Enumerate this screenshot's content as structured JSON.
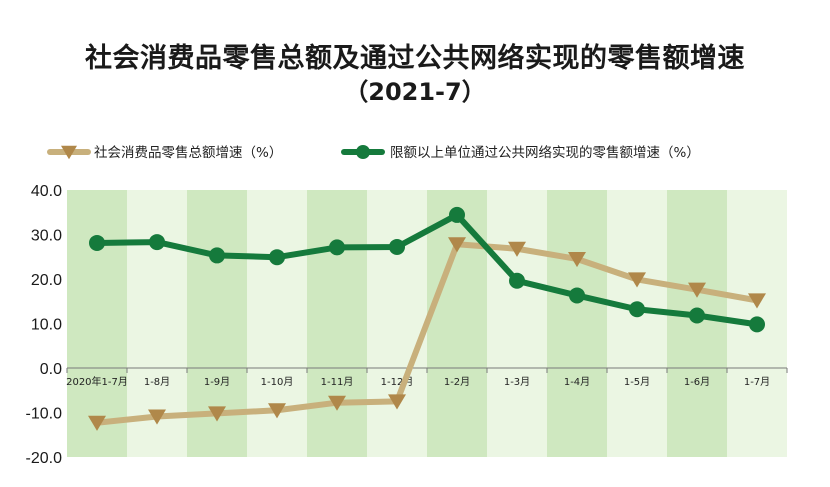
{
  "header": {
    "title": "社会消费品零售总额及通过公共网络实现的零售额增速",
    "subtitle": "（2021-7）"
  },
  "colors": {
    "series_retail": "#c8b07c",
    "series_online": "#157a3c",
    "band_dark": "#cfe8c0",
    "band_light": "#ebf6e3"
  },
  "chart_data": {
    "type": "line",
    "title": "社会消费品零售总额及通过公共网络实现的零售额增速",
    "subtitle": "（2021-7）",
    "categories": [
      "2020年1-7月",
      "1-8月",
      "1-9月",
      "1-10月",
      "1-11月",
      "1-12月",
      "1-2月",
      "1-3月",
      "1-4月",
      "1-5月",
      "1-6月",
      "1-7月"
    ],
    "series": [
      {
        "name": "社会消费品零售总额增速（%）",
        "marker": "triangle-down",
        "values": [
          -12.3,
          -10.9,
          -10.2,
          -9.5,
          -7.8,
          -7.5,
          27.8,
          26.8,
          24.5,
          19.9,
          17.6,
          15.2
        ]
      },
      {
        "name": "限额以上单位通过公共网络实现的零售额增速（%）",
        "marker": "circle",
        "values": [
          28.1,
          28.3,
          25.3,
          24.9,
          27.1,
          27.2,
          34.4,
          19.6,
          16.3,
          13.2,
          11.8,
          9.8
        ]
      }
    ],
    "yticks": [
      "-20.0",
      "-10.0",
      "0.0",
      "10.0",
      "20.0",
      "30.0",
      "40.0"
    ],
    "ylim": [
      -20,
      40
    ],
    "xlabel": "",
    "ylabel": "",
    "legend_position": "top",
    "grid": false
  }
}
